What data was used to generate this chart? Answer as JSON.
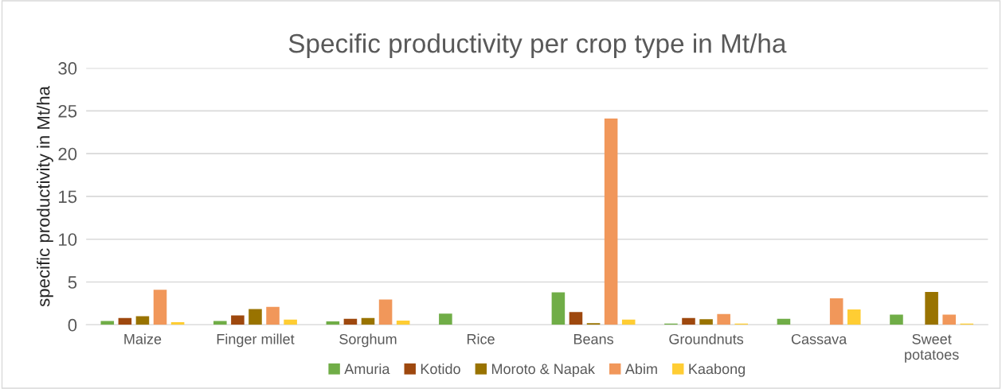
{
  "chart_data": {
    "type": "bar",
    "title": "Specific productivity per crop type in Mt/ha",
    "ylabel": "specific productivity in Mt/ha",
    "categories": [
      "Maize",
      "Finger millet",
      "Sorghum",
      "Rice",
      "Beans",
      "Groundnuts",
      "Cassava",
      "Sweet\npotatoes"
    ],
    "series": [
      {
        "name": "Amuria",
        "color": "#70ad47",
        "values": [
          0.45,
          0.45,
          0.4,
          1.3,
          3.8,
          0.15,
          0.7,
          1.2
        ]
      },
      {
        "name": "Kotido",
        "color": "#9e480e",
        "values": [
          0.8,
          1.1,
          0.7,
          null,
          1.5,
          0.8,
          null,
          null
        ]
      },
      {
        "name": "Moroto & Napak",
        "color": "#997300",
        "values": [
          1.0,
          1.85,
          0.8,
          null,
          0.2,
          0.65,
          null,
          3.85
        ]
      },
      {
        "name": "Abim",
        "color": "#f1975a",
        "values": [
          4.1,
          2.1,
          2.95,
          null,
          24.1,
          1.25,
          3.1,
          1.2
        ]
      },
      {
        "name": "Kaabong",
        "color": "#ffcd33",
        "values": [
          0.3,
          0.6,
          0.5,
          null,
          0.6,
          0.15,
          1.8,
          0.15
        ]
      }
    ],
    "ylim": [
      0,
      30
    ],
    "yticks": [
      0,
      5,
      10,
      15,
      20,
      25,
      30
    ],
    "grid": "y",
    "legend": "bottom"
  }
}
